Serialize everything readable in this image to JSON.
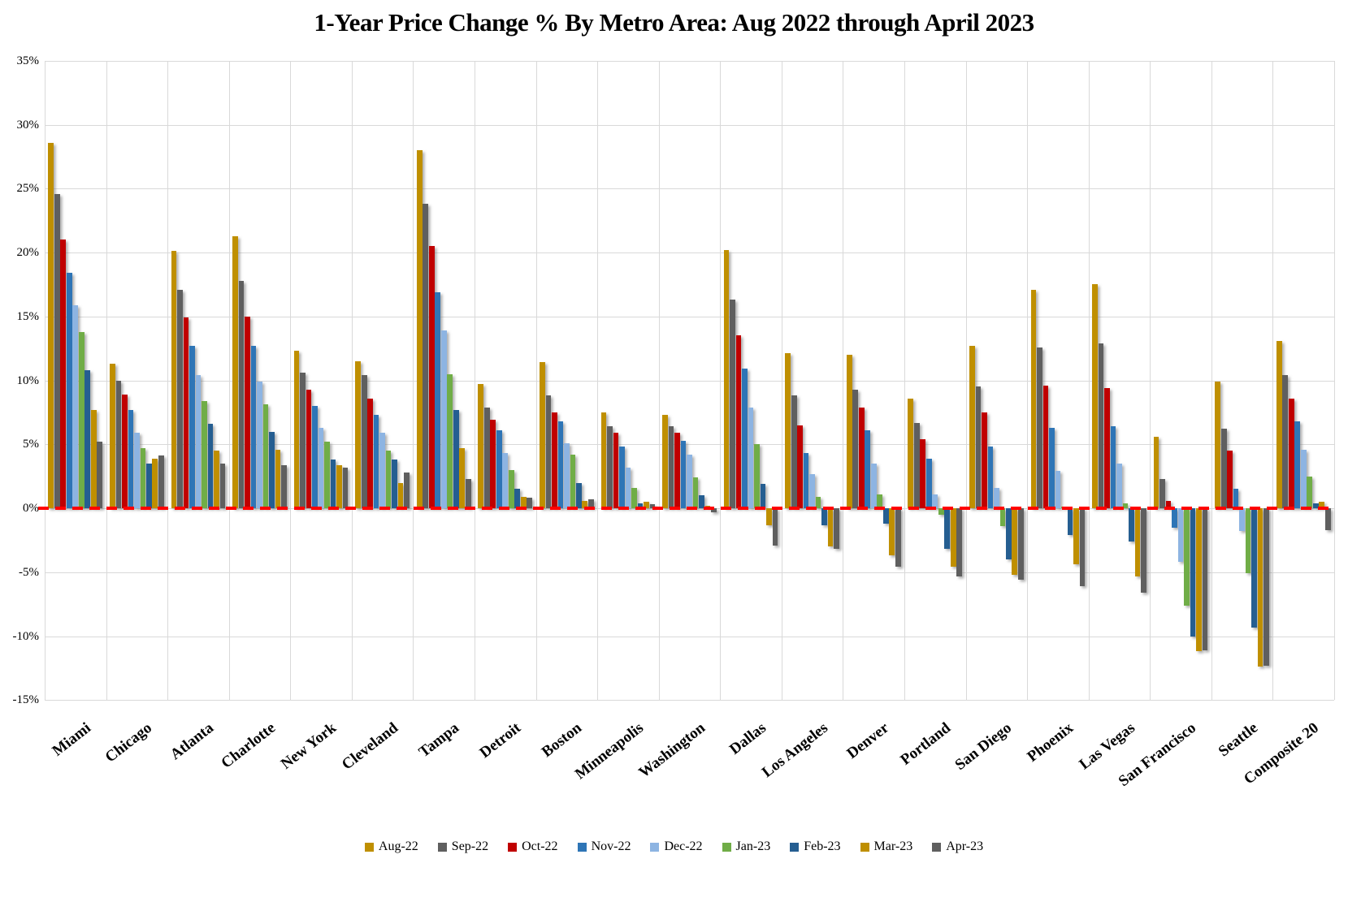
{
  "title": "1-Year Price Change % By Metro Area: Aug 2022 through April 2023",
  "chart_data": {
    "type": "bar",
    "title": "1-Year Price Change % By Metro Area: Aug 2022 through April 2023",
    "xlabel": "",
    "ylabel": "",
    "ylim": [
      -15,
      35
    ],
    "y_tick_step": 5,
    "y_tick_suffix": "%",
    "grid": true,
    "grid_color": "#d9d9d9",
    "background": "#ffffff",
    "zero_line": {
      "color": "#ff0000",
      "style": "dashed"
    },
    "legend_position": "bottom",
    "categories": [
      "Miami",
      "Chicago",
      "Atlanta",
      "Charlotte",
      "New York",
      "Cleveland",
      "Tampa",
      "Detroit",
      "Boston",
      "Minneapolis",
      "Washington",
      "Dallas",
      "Los Angeles",
      "Denver",
      "Portland",
      "San Diego",
      "Phoenix",
      "Las Vegas",
      "San Francisco",
      "Seattle",
      "Composite 20"
    ],
    "series": [
      {
        "name": "Aug-22",
        "color": "#BF8F00",
        "values": [
          28.6,
          11.3,
          20.1,
          21.3,
          12.3,
          11.5,
          28.0,
          9.7,
          11.4,
          7.5,
          7.3,
          20.2,
          12.1,
          12.0,
          8.6,
          12.7,
          17.1,
          17.5,
          5.6,
          9.9,
          13.1
        ]
      },
      {
        "name": "Sep-22",
        "color": "#5F5F5F",
        "values": [
          24.6,
          10.0,
          17.1,
          17.8,
          10.6,
          10.4,
          23.8,
          7.9,
          8.8,
          6.4,
          6.4,
          16.3,
          8.8,
          9.3,
          6.7,
          9.5,
          12.6,
          12.9,
          2.3,
          6.2,
          10.4
        ]
      },
      {
        "name": "Oct-22",
        "color": "#C00000",
        "values": [
          21.0,
          8.9,
          14.9,
          15.0,
          9.3,
          8.6,
          20.5,
          6.9,
          7.5,
          5.9,
          5.9,
          13.5,
          6.5,
          7.9,
          5.4,
          7.5,
          9.6,
          9.4,
          0.6,
          4.5,
          8.6
        ]
      },
      {
        "name": "Nov-22",
        "color": "#2E75B6",
        "values": [
          18.4,
          7.7,
          12.7,
          12.7,
          8.0,
          7.3,
          16.9,
          6.1,
          6.8,
          4.8,
          5.3,
          10.9,
          4.3,
          6.1,
          3.9,
          4.8,
          6.3,
          6.4,
          -1.5,
          1.5,
          6.8
        ]
      },
      {
        "name": "Dec-22",
        "color": "#8DB4E2",
        "values": [
          15.9,
          5.9,
          10.4,
          9.9,
          6.3,
          5.9,
          13.9,
          4.3,
          5.1,
          3.2,
          4.2,
          7.9,
          2.7,
          3.5,
          1.1,
          1.6,
          2.9,
          3.5,
          -4.2,
          -1.8,
          4.6
        ]
      },
      {
        "name": "Jan-23",
        "color": "#70AD47",
        "values": [
          13.8,
          4.7,
          8.4,
          8.1,
          5.2,
          4.5,
          10.5,
          3.0,
          4.2,
          1.6,
          2.4,
          5.0,
          0.9,
          1.1,
          -0.5,
          -1.4,
          0.1,
          0.4,
          -7.6,
          -5.1,
          2.5
        ]
      },
      {
        "name": "Feb-23",
        "color": "#255E91",
        "values": [
          10.8,
          3.5,
          6.6,
          6.0,
          3.8,
          3.8,
          7.7,
          1.5,
          2.0,
          0.4,
          1.0,
          1.9,
          -1.3,
          -1.2,
          -3.2,
          -4.0,
          -2.1,
          -2.6,
          -10.0,
          -9.3,
          0.4
        ]
      },
      {
        "name": "Mar-23",
        "color": "#BF8F00",
        "values": [
          7.7,
          3.9,
          4.5,
          4.6,
          3.4,
          2.0,
          4.7,
          0.9,
          0.6,
          0.5,
          0.2,
          -1.3,
          -3.0,
          -3.7,
          -4.6,
          -5.2,
          -4.4,
          -5.3,
          -11.2,
          -12.4,
          0.5
        ]
      },
      {
        "name": "Apr-23",
        "color": "#5F5F5F",
        "values": [
          5.2,
          4.1,
          3.5,
          3.4,
          3.2,
          2.8,
          2.3,
          0.8,
          0.7,
          0.3,
          -0.3,
          -2.9,
          -3.2,
          -4.6,
          -5.3,
          -5.6,
          -6.1,
          -6.6,
          -11.1,
          -12.3,
          -1.7
        ]
      }
    ]
  }
}
